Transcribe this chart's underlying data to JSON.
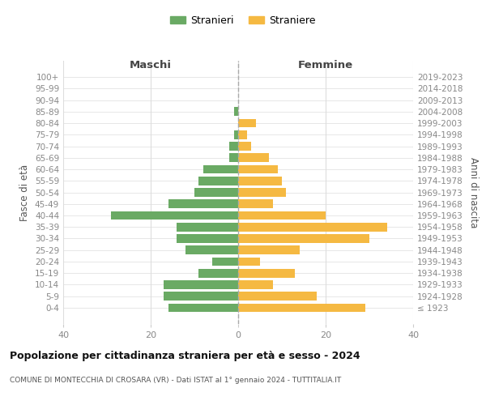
{
  "age_groups": [
    "100+",
    "95-99",
    "90-94",
    "85-89",
    "80-84",
    "75-79",
    "70-74",
    "65-69",
    "60-64",
    "55-59",
    "50-54",
    "45-49",
    "40-44",
    "35-39",
    "30-34",
    "25-29",
    "20-24",
    "15-19",
    "10-14",
    "5-9",
    "0-4"
  ],
  "birth_years": [
    "≤ 1923",
    "1924-1928",
    "1929-1933",
    "1934-1938",
    "1939-1943",
    "1944-1948",
    "1949-1953",
    "1954-1958",
    "1959-1963",
    "1964-1968",
    "1969-1973",
    "1974-1978",
    "1979-1983",
    "1984-1988",
    "1989-1993",
    "1994-1998",
    "1999-2003",
    "2004-2008",
    "2009-2013",
    "2014-2018",
    "2019-2023"
  ],
  "males": [
    0,
    0,
    0,
    1,
    0,
    1,
    2,
    2,
    8,
    9,
    10,
    16,
    29,
    14,
    14,
    12,
    6,
    9,
    17,
    17,
    16
  ],
  "females": [
    0,
    0,
    0,
    0,
    4,
    2,
    3,
    7,
    9,
    10,
    11,
    8,
    20,
    34,
    30,
    14,
    5,
    13,
    8,
    18,
    29
  ],
  "male_color": "#6aaa64",
  "female_color": "#f5b942",
  "background_color": "#ffffff",
  "grid_color": "#dddddd",
  "title": "Popolazione per cittadinanza straniera per età e sesso - 2024",
  "subtitle": "COMUNE DI MONTECCHIA DI CROSARA (VR) - Dati ISTAT al 1° gennaio 2024 - TUTTITALIA.IT",
  "label_maschi": "Maschi",
  "label_femmine": "Femmine",
  "ylabel_left": "Fasce di età",
  "ylabel_right": "Anni di nascita",
  "legend_males": "Stranieri",
  "legend_females": "Straniere",
  "xlim": 40
}
